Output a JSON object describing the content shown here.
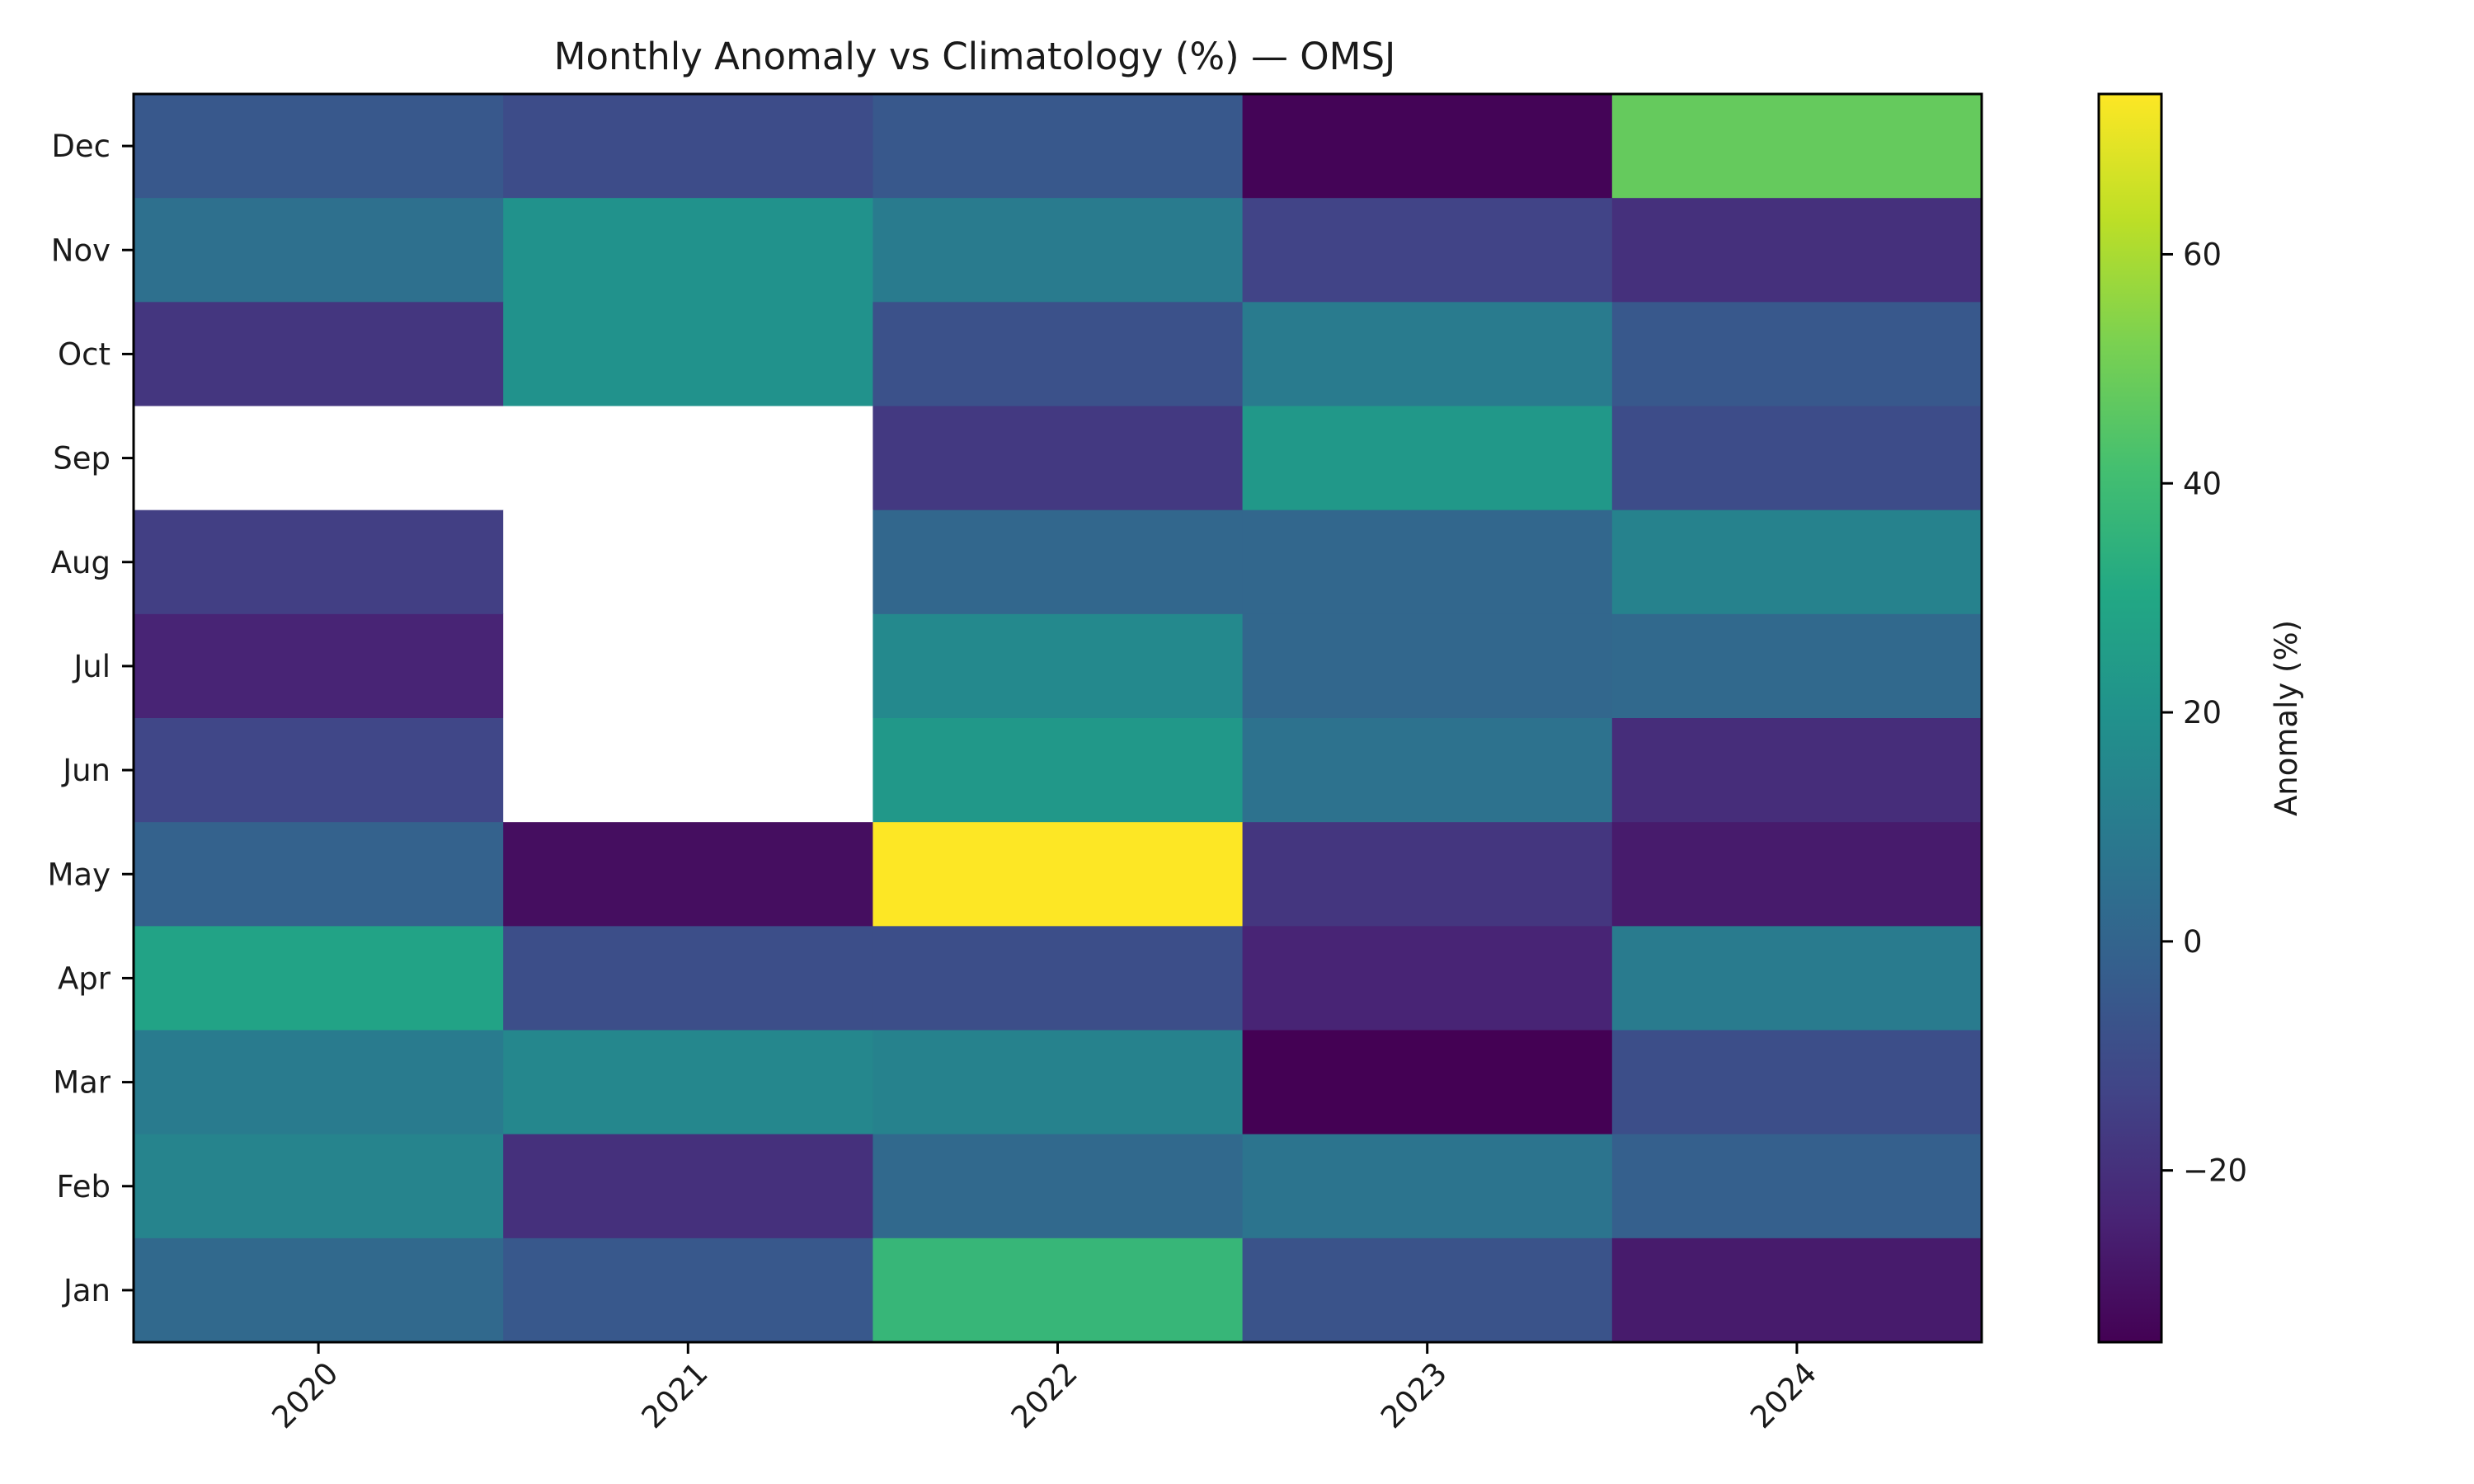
{
  "chart_data": {
    "type": "heatmap",
    "title": "Monthly Anomaly vs Climatology (%) — OMSJ",
    "xlabel": "",
    "ylabel": "",
    "colormap": "viridis",
    "x_categories": [
      "2020",
      "2021",
      "2022",
      "2023",
      "2024"
    ],
    "y_categories": [
      "Dec",
      "Nov",
      "Oct",
      "Sep",
      "Aug",
      "Jul",
      "Jun",
      "May",
      "Apr",
      "Mar",
      "Feb",
      "Jan"
    ],
    "values": [
      [
        -5,
        -10,
        -5,
        -34,
        48
      ],
      [
        5,
        20,
        10,
        -13,
        -20
      ],
      [
        -18,
        20,
        -8,
        10,
        -5
      ],
      [
        null,
        null,
        -17,
        23,
        -10
      ],
      [
        -15,
        null,
        1,
        1,
        13
      ],
      [
        -24,
        null,
        16,
        1,
        2
      ],
      [
        -12,
        null,
        23,
        6,
        -21
      ],
      [
        -1,
        -31,
        74,
        -18,
        -27
      ],
      [
        28,
        -9,
        -9,
        -24,
        10
      ],
      [
        10,
        15,
        13,
        -35,
        -9
      ],
      [
        14,
        -20,
        2,
        7,
        -2
      ],
      [
        2,
        -5,
        37,
        -7,
        -27
      ]
    ],
    "colorbar": {
      "label": "Anomaly (%)",
      "min": -35,
      "max": 74,
      "ticks": [
        -20,
        0,
        20,
        40,
        60
      ],
      "tick_labels": [
        "−20",
        "0",
        "20",
        "40",
        "60"
      ]
    },
    "grid": false
  }
}
